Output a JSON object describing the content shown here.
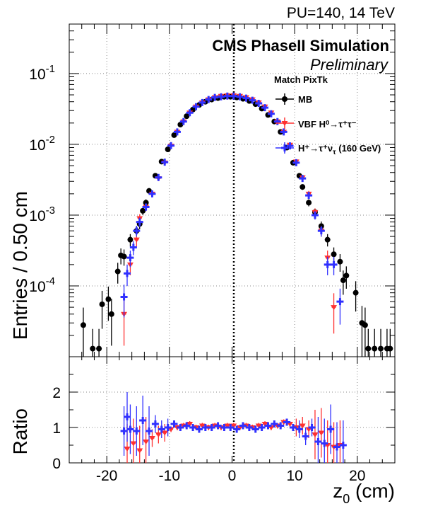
{
  "header": {
    "energy_label": "PU=140, 14 TeV",
    "experiment_label": "CMS PhaseII Simulation",
    "status_label": "Preliminary"
  },
  "legend": {
    "title": "Match PixTk",
    "entries": [
      {
        "label": "MB",
        "color": "#000000",
        "marker": "circle"
      },
      {
        "label": "VBF H⁰→τ⁺τ⁻",
        "color": "#ff3030",
        "marker": "triangle-down"
      },
      {
        "label": "H⁺→τ⁺ν",
        "sub": "τ",
        "suffix": " (160 GeV)",
        "color": "#3030ff",
        "marker": "cross"
      }
    ]
  },
  "axes": {
    "xlabel": "z",
    "xlabel_sub": "0",
    "xlabel_suffix": " (cm)",
    "ylabel_top": "Entries / 0.50 cm",
    "ylabel_bottom": "Ratio"
  },
  "chart_data": [
    {
      "type": "scatter",
      "title": "",
      "xlabel": "z0 (cm)",
      "ylabel": "Entries / 0.50 cm",
      "xlim": [
        -26,
        26
      ],
      "ylim": [
        1e-05,
        0.5
      ],
      "yscale": "log",
      "grid": true,
      "x_ticks": [
        -20,
        -10,
        0,
        10,
        20
      ],
      "y_ticks": [
        {
          "value": 0.0001,
          "base": "10",
          "exp": "-4"
        },
        {
          "value": 0.001,
          "base": "10",
          "exp": "-3"
        },
        {
          "value": 0.01,
          "base": "10",
          "exp": "-2"
        },
        {
          "value": 0.1,
          "base": "10",
          "exp": "-1"
        }
      ],
      "annotation": "dotted vertical line at z0 = 0",
      "series": [
        {
          "name": "MB",
          "color": "#000000",
          "marker": "circle",
          "x": [
            -23.75,
            -22.25,
            -21.25,
            -20.75,
            -19.75,
            -19.25,
            -18.25,
            -17.75,
            -17.25,
            -16.25,
            -15.25,
            -14.75,
            -14.25,
            -13.75,
            -13.25,
            -12.25,
            -11.25,
            -10.25,
            -9.25,
            -8.25,
            -7.25,
            -6.25,
            -5.25,
            -4.25,
            -3.25,
            -2.25,
            -1.25,
            -0.25,
            0.75,
            1.75,
            2.75,
            3.75,
            4.75,
            5.75,
            6.75,
            7.75,
            8.75,
            9.75,
            10.75,
            11.25,
            12.25,
            13.25,
            14.25,
            15.25,
            16.25,
            17.25,
            17.75,
            18.25,
            19.75,
            20.75,
            21.25,
            21.75,
            22.75,
            23.75,
            24.75,
            25.25
          ],
          "y": [
            2.8e-05,
            1.3e-05,
            1.3e-05,
            5.5e-05,
            6.5e-05,
            4e-05,
            0.00016,
            0.00027,
            0.00026,
            0.00045,
            0.0006,
            0.00075,
            0.00115,
            0.0015,
            0.0022,
            0.0036,
            0.0057,
            0.0085,
            0.0135,
            0.019,
            0.025,
            0.031,
            0.036,
            0.04,
            0.043,
            0.045,
            0.047,
            0.047,
            0.046,
            0.044,
            0.041,
            0.037,
            0.032,
            0.026,
            0.021,
            0.015,
            0.009,
            0.0055,
            0.0036,
            0.0025,
            0.0015,
            0.0011,
            0.0007,
            0.00045,
            0.00028,
            0.00022,
            0.00012,
            0.00014,
            8e-05,
            3e-05,
            2.8e-05,
            1.3e-05,
            1.3e-05,
            1.3e-05,
            1.3e-05,
            1.3e-05
          ]
        },
        {
          "name": "VBF H⁰→τ⁺τ⁻",
          "color": "#ff3030",
          "marker": "triangle-down",
          "x": [
            -17.25,
            -16.25,
            -15.25,
            -14.75,
            -13.75,
            -12.75,
            -11.75,
            -10.75,
            -9.75,
            -8.75,
            -7.75,
            -6.75,
            -5.75,
            -4.75,
            -3.75,
            -2.75,
            -1.75,
            -0.75,
            0.25,
            1.25,
            2.25,
            3.25,
            4.25,
            5.25,
            6.25,
            7.25,
            8.25,
            9.25,
            10.25,
            11.25,
            12.25,
            13.25,
            14.25,
            15.25,
            16.25
          ],
          "y": [
            4e-05,
            0.0002,
            0.00045,
            0.0009,
            0.0013,
            0.002,
            0.0033,
            0.0055,
            0.0095,
            0.015,
            0.021,
            0.028,
            0.034,
            0.039,
            0.043,
            0.046,
            0.048,
            0.049,
            0.049,
            0.048,
            0.046,
            0.043,
            0.039,
            0.034,
            0.028,
            0.021,
            0.015,
            0.0098,
            0.0057,
            0.0034,
            0.002,
            0.0011,
            0.0006,
            0.00025,
            5e-05
          ]
        },
        {
          "name": "H⁺→τ⁺ντ (160 GeV)",
          "color": "#3030ff",
          "marker": "cross",
          "x": [
            -17.25,
            -16.75,
            -16.25,
            -15.75,
            -15.25,
            -14.75,
            -13.75,
            -12.75,
            -11.75,
            -10.75,
            -9.75,
            -8.75,
            -7.75,
            -6.75,
            -5.75,
            -4.75,
            -3.75,
            -2.75,
            -1.75,
            -0.75,
            0.25,
            1.25,
            2.25,
            3.25,
            4.25,
            5.25,
            6.25,
            7.25,
            8.25,
            9.25,
            10.25,
            11.25,
            12.25,
            13.25,
            14.25,
            15.25,
            16.25,
            17.25
          ],
          "y": [
            7e-05,
            0.00015,
            0.00025,
            0.00035,
            0.0006,
            0.0008,
            0.0013,
            0.002,
            0.0034,
            0.0056,
            0.0096,
            0.015,
            0.021,
            0.028,
            0.034,
            0.039,
            0.043,
            0.046,
            0.047,
            0.048,
            0.048,
            0.047,
            0.045,
            0.042,
            0.038,
            0.033,
            0.027,
            0.021,
            0.015,
            0.0095,
            0.0055,
            0.0033,
            0.0019,
            0.001,
            0.0006,
            0.0002,
            0.0002,
            6e-05
          ]
        }
      ]
    },
    {
      "type": "scatter",
      "title": "",
      "xlabel": "z0 (cm)",
      "ylabel": "Ratio",
      "xlim": [
        -26,
        26
      ],
      "ylim": [
        0,
        3
      ],
      "grid": true,
      "x_ticks": [
        -20,
        -10,
        0,
        10,
        20
      ],
      "y_ticks": [
        0,
        1,
        2
      ],
      "annotation": "dotted vertical line at z0 = 0",
      "series": [
        {
          "name": "VBF H⁰→τ⁺τ⁻",
          "color": "#ff3030",
          "marker": "triangle-down",
          "x": [
            -16.75,
            -15.75,
            -14.75,
            -13.75,
            -12.75,
            -11.75,
            -10.75,
            -9.75,
            -8.75,
            -7.75,
            -6.75,
            -5.75,
            -4.75,
            -3.75,
            -2.75,
            -1.75,
            -0.75,
            0.25,
            1.25,
            2.25,
            3.25,
            4.25,
            5.25,
            6.25,
            7.25,
            8.25,
            9.25,
            10.25,
            11.25,
            12.25,
            13.25,
            14.25,
            15.25,
            16.25,
            17.25
          ],
          "y": [
            0.4,
            0.55,
            0.35,
            0.6,
            0.7,
            0.8,
            0.85,
            0.95,
            1.0,
            1.05,
            1.1,
            1.0,
            1.05,
            1.0,
            1.05,
            1.0,
            1.05,
            1.05,
            1.0,
            1.05,
            1.0,
            1.05,
            1.1,
            1.0,
            1.05,
            1.15,
            1.1,
            1.0,
            1.05,
            0.95,
            0.8,
            0.85,
            0.5,
            0.45,
            0.5
          ]
        },
        {
          "name": "H⁺→τ⁺ντ (160 GeV)",
          "color": "#3030ff",
          "marker": "cross",
          "x": [
            -17.25,
            -16.75,
            -16.25,
            -15.25,
            -14.25,
            -13.25,
            -12.25,
            -11.25,
            -10.25,
            -9.25,
            -8.25,
            -7.25,
            -6.25,
            -5.25,
            -4.25,
            -3.25,
            -2.25,
            -1.25,
            -0.25,
            0.75,
            1.75,
            2.75,
            3.75,
            4.75,
            5.75,
            6.75,
            7.75,
            8.75,
            9.75,
            10.75,
            11.75,
            12.75,
            13.75,
            14.75,
            15.75,
            16.75,
            17.75
          ],
          "y": [
            0.9,
            1.3,
            0.95,
            0.9,
            1.2,
            0.9,
            1.1,
            0.95,
            1.0,
            1.1,
            1.0,
            1.05,
            1.0,
            0.95,
            1.0,
            1.0,
            1.05,
            1.0,
            1.0,
            0.95,
            1.05,
            1.0,
            0.95,
            1.0,
            1.05,
            1.1,
            1.05,
            1.15,
            1.0,
            0.95,
            0.75,
            1.0,
            0.6,
            0.55,
            0.95,
            0.45,
            0.5
          ]
        }
      ]
    }
  ]
}
